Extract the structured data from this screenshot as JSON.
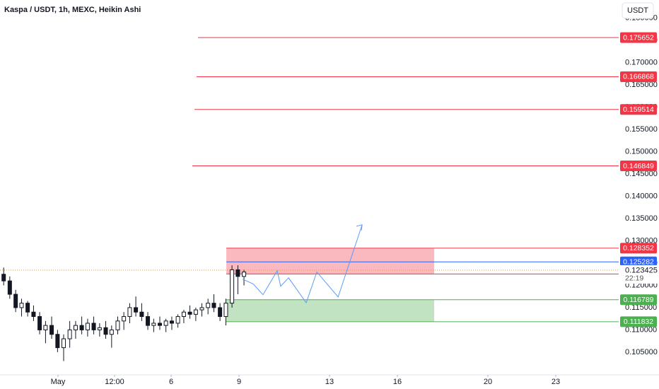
{
  "header": {
    "title": "Kaspa / USDT, 1h, MEXC, Heikin Ashi",
    "currency": "USDT"
  },
  "chart_data": {
    "type": "candlestick",
    "x": [
      -1.4,
      -1.13,
      -0.87,
      -0.61,
      -0.34,
      -0.08,
      0.19,
      0.45,
      0.72,
      0.98,
      1.25,
      1.52,
      1.78,
      2.05,
      2.31,
      2.58,
      2.84,
      3.11,
      3.37,
      3.64,
      3.91,
      4.17,
      4.44,
      4.7,
      4.97,
      5.23,
      5.5,
      5.77,
      6.03,
      6.3,
      6.56,
      6.83,
      7.09,
      7.36,
      7.63,
      7.89,
      8.16,
      8.42,
      8.69,
      8.95,
      9.22
    ],
    "open": [
      0.1225,
      0.121,
      0.118,
      0.115,
      0.116,
      0.114,
      0.113,
      0.11,
      0.111,
      0.109,
      0.106,
      0.108,
      0.11,
      0.111,
      0.11,
      0.1115,
      0.11,
      0.1105,
      0.109,
      0.11,
      0.112,
      0.113,
      0.115,
      0.114,
      0.113,
      0.111,
      0.1115,
      0.111,
      0.112,
      0.1115,
      0.113,
      0.114,
      0.1135,
      0.1145,
      0.115,
      0.116,
      0.115,
      0.113,
      0.116,
      0.1235,
      0.122
    ],
    "high": [
      0.124,
      0.122,
      0.119,
      0.117,
      0.1165,
      0.1155,
      0.114,
      0.112,
      0.113,
      0.11,
      0.109,
      0.112,
      0.112,
      0.113,
      0.1125,
      0.113,
      0.1115,
      0.112,
      0.111,
      0.113,
      0.114,
      0.116,
      0.1175,
      0.116,
      0.114,
      0.1125,
      0.113,
      0.1125,
      0.113,
      0.1135,
      0.1145,
      0.1155,
      0.115,
      0.116,
      0.117,
      0.118,
      0.116,
      0.117,
      0.1245,
      0.1245,
      0.1235
    ],
    "low": [
      0.12,
      0.117,
      0.114,
      0.113,
      0.113,
      0.112,
      0.109,
      0.107,
      0.108,
      0.105,
      0.103,
      0.106,
      0.108,
      0.109,
      0.1085,
      0.109,
      0.1085,
      0.108,
      0.106,
      0.109,
      0.11,
      0.1115,
      0.113,
      0.112,
      0.11,
      0.1095,
      0.11,
      0.1095,
      0.11,
      0.1105,
      0.1115,
      0.1125,
      0.112,
      0.113,
      0.1135,
      0.114,
      0.112,
      0.111,
      0.115,
      0.118,
      0.12
    ],
    "close": [
      0.121,
      0.118,
      0.115,
      0.116,
      0.114,
      0.113,
      0.11,
      0.111,
      0.109,
      0.106,
      0.108,
      0.11,
      0.111,
      0.11,
      0.1115,
      0.11,
      0.1105,
      0.109,
      0.11,
      0.112,
      0.113,
      0.115,
      0.114,
      0.113,
      0.111,
      0.1115,
      0.111,
      0.112,
      0.1115,
      0.113,
      0.114,
      0.1135,
      0.1145,
      0.115,
      0.116,
      0.115,
      0.113,
      0.116,
      0.1235,
      0.122,
      0.123
    ],
    "color": "#131722",
    "xlim": [
      -1.5625,
      25.78
    ],
    "xticks": [
      {
        "value": 1,
        "label": "May"
      },
      {
        "value": 3.5,
        "label": "12:00"
      },
      6,
      9,
      13,
      16,
      20,
      23
    ],
    "ylim": [
      0.0999,
      0.1841
    ],
    "yticks": [
      {
        "value": 0.105,
        "label": "0.105000"
      },
      {
        "value": 0.11,
        "label": "0.110000"
      },
      {
        "value": 0.115,
        "label": "0.115000"
      },
      {
        "value": 0.12,
        "label": "0.120000"
      },
      {
        "value": 0.125,
        "label": "0.125000"
      },
      {
        "value": 0.13,
        "label": "0.130000"
      },
      {
        "value": 0.135,
        "label": "0.135000"
      },
      {
        "value": 0.14,
        "label": "0.140000"
      },
      {
        "value": 0.145,
        "label": "0.145000"
      },
      {
        "value": 0.15,
        "label": "0.150000"
      },
      {
        "value": 0.155,
        "label": "0.155000"
      },
      {
        "value": 0.16,
        "label": "0.160000"
      },
      {
        "value": 0.165,
        "label": "0.165000"
      },
      {
        "value": 0.17,
        "label": "0.170000"
      },
      {
        "value": 0.175,
        "label": "0.175000"
      },
      {
        "value": 0.18,
        "label": "0.180000"
      }
    ],
    "grid": false,
    "levels": [
      {
        "value": 0.175652,
        "start": 7.19,
        "color": "#f23645"
      },
      {
        "value": 0.166868,
        "start": 7.125,
        "color": "#f23645"
      },
      {
        "value": 0.159514,
        "start": 7.03,
        "color": "#f23645"
      },
      {
        "value": 0.146849,
        "start": 6.94,
        "color": "#f23645"
      },
      {
        "value": 0.125282,
        "start": 8.44,
        "color": "#2962ff"
      }
    ],
    "zones": [
      {
        "top": 0.128352,
        "bottom": 0.122554,
        "start": 8.44,
        "end": 17.625,
        "color": "#f23645"
      },
      {
        "top": 0.116789,
        "bottom": 0.111832,
        "start": 8.44,
        "end": 17.625,
        "color": "#4caf50"
      }
    ],
    "last_price": {
      "value": 0.123425,
      "countdown": "22:19",
      "color": "#ff9800"
    },
    "projection": {
      "x": [
        9.16,
        9.63,
        10.06,
        10.69,
        10.84,
        11.19,
        11.97,
        12.44,
        13.38,
        14.44
      ],
      "y": [
        0.1214,
        0.1203,
        0.1179,
        0.1233,
        0.1198,
        0.1217,
        0.1161,
        0.123,
        0.1174,
        0.1336
      ],
      "color": "#5b9cf6"
    }
  }
}
